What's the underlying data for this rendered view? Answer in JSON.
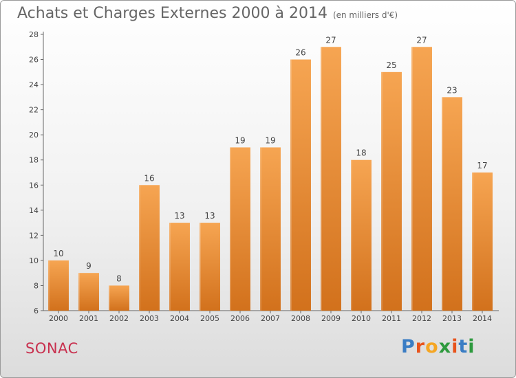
{
  "header": {
    "title": "Achats et Charges Externes 2000 à 2014",
    "subtitle": "(en milliers d'€)"
  },
  "commune": "SONAC",
  "logo": {
    "letters": [
      "P",
      "r",
      "o",
      "x",
      "i",
      "t",
      "i"
    ],
    "colors": [
      "#3a7dc4",
      "#e8541c",
      "#f5a623",
      "#2e9a3e",
      "#e8541c",
      "#3a7dc4",
      "#2e9a3e"
    ]
  },
  "chart_data": {
    "type": "bar",
    "categories": [
      "2000",
      "2001",
      "2002",
      "2003",
      "2004",
      "2005",
      "2006",
      "2007",
      "2008",
      "2009",
      "2010",
      "2011",
      "2012",
      "2013",
      "2014"
    ],
    "values": [
      10,
      9,
      8,
      16,
      13,
      13,
      19,
      19,
      26,
      27,
      18,
      25,
      27,
      23,
      17
    ],
    "title": "Achats et Charges Externes 2000 à 2014",
    "subtitle": "(en milliers d'€)",
    "xlabel": "",
    "ylabel": "",
    "ylim": [
      6,
      28
    ],
    "yticks": [
      6,
      8,
      10,
      12,
      14,
      16,
      18,
      20,
      22,
      24,
      26,
      28
    ],
    "grid": false,
    "bar_color": "#f0923e",
    "bar_color_dark": "#d0711e"
  }
}
